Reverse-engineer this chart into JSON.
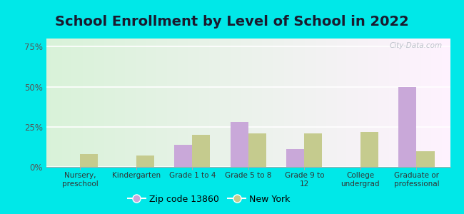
{
  "title": "School Enrollment by Level of School in 2022",
  "categories": [
    "Nursery,\npreschool",
    "Kindergarten",
    "Grade 1 to 4",
    "Grade 5 to 8",
    "Grade 9 to\n12",
    "College\nundergrad",
    "Graduate or\nprofessional"
  ],
  "zip_values": [
    0,
    0,
    14,
    28,
    11,
    0,
    50
  ],
  "ny_values": [
    8,
    7,
    20,
    21,
    21,
    22,
    10
  ],
  "zip_color": "#c9a8d9",
  "ny_color": "#c5cb8e",
  "zip_label": "Zip code 13860",
  "ny_label": "New York",
  "yticks": [
    0,
    25,
    50,
    75
  ],
  "ylim": [
    0,
    80
  ],
  "outer_background": "#00e8e8",
  "title_fontsize": 14,
  "watermark": "City-Data.com"
}
